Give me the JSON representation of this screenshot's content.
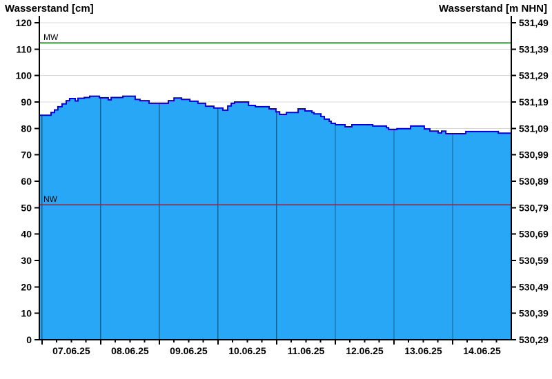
{
  "chart_data": {
    "type": "area",
    "title_left": "Wasserstand [cm]",
    "title_right": "Wasserstand [m NHN]",
    "grid": true,
    "legend": "none",
    "y_left": {
      "label": "Wasserstand [cm]",
      "min": 0,
      "max": 120,
      "step": 10,
      "tick_labels": [
        "0",
        "10",
        "20",
        "30",
        "40",
        "50",
        "60",
        "70",
        "80",
        "90",
        "100",
        "110",
        "120"
      ]
    },
    "y_right": {
      "label": "Wasserstand [m NHN]",
      "tick_labels": [
        "530,29",
        "530,39",
        "530,49",
        "530,59",
        "530,69",
        "530,79",
        "530,89",
        "530,99",
        "531,09",
        "531,19",
        "531,29",
        "531,39",
        "531,49"
      ]
    },
    "x": {
      "day_labels": [
        "07.06.25",
        "08.06.25",
        "09.06.25",
        "10.06.25",
        "11.06.25",
        "12.06.25",
        "13.06.25",
        "14.06.25"
      ],
      "days": 8,
      "hours_before_first_midnight": 1.1,
      "total_hours": 193.1,
      "minor_tick_hours": 6
    },
    "series": {
      "name": "Wasserstand",
      "unit": "cm",
      "step_points": [
        [
          0.0,
          85.0
        ],
        [
          4.8,
          86.0
        ],
        [
          6.2,
          87.0
        ],
        [
          7.6,
          88.2
        ],
        [
          9.3,
          89.3
        ],
        [
          11.0,
          90.5
        ],
        [
          12.4,
          91.3
        ],
        [
          14.7,
          90.4
        ],
        [
          15.8,
          91.4
        ],
        [
          18.4,
          91.7
        ],
        [
          20.6,
          92.2
        ],
        [
          24.6,
          91.6
        ],
        [
          28.2,
          90.8
        ],
        [
          29.4,
          91.7
        ],
        [
          34.2,
          92.2
        ],
        [
          39.2,
          91.0
        ],
        [
          41.2,
          90.5
        ],
        [
          44.9,
          89.5
        ],
        [
          52.8,
          90.5
        ],
        [
          55.1,
          91.5
        ],
        [
          58.2,
          91.0
        ],
        [
          61.6,
          90.3
        ],
        [
          64.9,
          89.5
        ],
        [
          68.0,
          88.4
        ],
        [
          71.4,
          87.7
        ],
        [
          75.1,
          86.9
        ],
        [
          77.1,
          88.5
        ],
        [
          78.5,
          89.5
        ],
        [
          79.9,
          90.0
        ],
        [
          85.6,
          88.7
        ],
        [
          88.4,
          88.2
        ],
        [
          94.0,
          87.4
        ],
        [
          96.8,
          86.3
        ],
        [
          98.3,
          85.3
        ],
        [
          101.1,
          86.0
        ],
        [
          105.9,
          87.4
        ],
        [
          108.7,
          86.6
        ],
        [
          111.5,
          86.0
        ],
        [
          112.4,
          85.5
        ],
        [
          115.2,
          84.5
        ],
        [
          116.6,
          83.5
        ],
        [
          118.6,
          82.7
        ],
        [
          119.4,
          81.9
        ],
        [
          121.1,
          81.4
        ],
        [
          125.1,
          80.6
        ],
        [
          127.9,
          81.4
        ],
        [
          136.4,
          80.9
        ],
        [
          142.0,
          80.3
        ],
        [
          142.9,
          79.6
        ],
        [
          146.3,
          79.9
        ],
        [
          151.9,
          80.9
        ],
        [
          157.5,
          79.8
        ],
        [
          159.8,
          79.0
        ],
        [
          163.2,
          78.3
        ],
        [
          164.6,
          79.0
        ],
        [
          166.3,
          78.0
        ],
        [
          174.5,
          78.8
        ],
        [
          187.8,
          78.2
        ],
        [
          193.1,
          78.2
        ]
      ]
    },
    "reference_lines": [
      {
        "label": "MW",
        "value_cm": 112.4,
        "color": "#007a00"
      },
      {
        "label": "NW",
        "value_cm": 51.1,
        "color": "#e00000"
      }
    ],
    "colors": {
      "fill": "#29a7f7",
      "stroke": "#0000d9",
      "grid": "#d8d8d8",
      "axis": "#000000",
      "text": "#000000",
      "day_grid_on_fill": "rgba(0,0,0,0.42)"
    }
  }
}
